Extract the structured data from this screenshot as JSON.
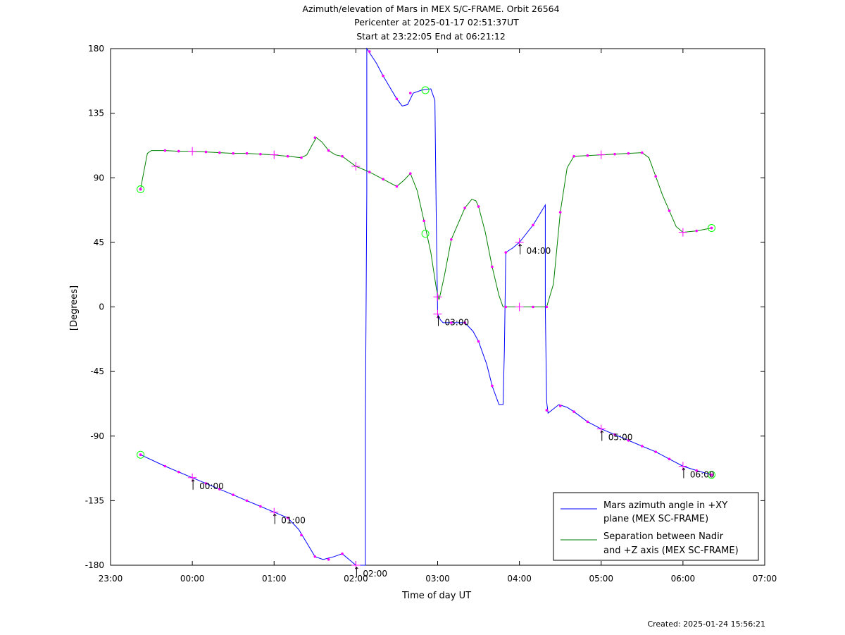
{
  "header": {
    "title_line1": "Azimuth/elevation of Mars in MEX S/C-FRAME.  Orbit 26564",
    "title_line2": "Pericenter at 2025-01-17 02:51:37UT",
    "title_line3": "Start at 23:22:05 End at 06:21:12"
  },
  "footer": {
    "created": "Created: 2025-01-24 15:56:21"
  },
  "chart_data": {
    "type": "line",
    "xlabel": "Time of day UT",
    "ylabel": "[Degrees]",
    "xlim": [
      "23:00",
      "07:00"
    ],
    "ylim": [
      -180,
      180
    ],
    "x_ticks": [
      "23:00",
      "00:00",
      "01:00",
      "02:00",
      "03:00",
      "04:00",
      "05:00",
      "06:00",
      "07:00"
    ],
    "y_ticks": [
      180,
      135,
      90,
      45,
      0,
      -45,
      -90,
      -135,
      -180
    ],
    "grid": false,
    "legend_position": "bottom-right",
    "series": [
      {
        "name": "Mars azimuth angle in +XY plane (MEX SC-FRAME)",
        "legend_line1": "Mars azimuth angle in +XY",
        "legend_line2": "plane (MEX SC-FRAME)",
        "color": "#0000ff",
        "points": [
          [
            "23:22",
            -103
          ],
          [
            "23:40",
            -111
          ],
          [
            "23:50",
            -115
          ],
          [
            "00:00",
            -119
          ],
          [
            "00:10",
            -123
          ],
          [
            "00:20",
            -127
          ],
          [
            "00:30",
            -131
          ],
          [
            "00:40",
            -135
          ],
          [
            "00:50",
            -139
          ],
          [
            "01:00",
            -143
          ],
          [
            "01:10",
            -147
          ],
          [
            "01:18",
            -155
          ],
          [
            "01:25",
            -166
          ],
          [
            "01:30",
            -174
          ],
          [
            "01:36",
            -176
          ],
          [
            "01:44",
            -174
          ],
          [
            "01:50",
            -172
          ],
          [
            "01:55",
            -176
          ],
          [
            "02:00",
            -180
          ],
          [
            "02:07",
            -180
          ],
          [
            "02:07",
            -80
          ],
          [
            "02:08",
            80
          ],
          [
            "02:08",
            180
          ],
          [
            "02:15",
            170
          ],
          [
            "02:20",
            161
          ],
          [
            "02:30",
            145
          ],
          [
            "02:34",
            140
          ],
          [
            "02:38",
            141
          ],
          [
            "02:42",
            149
          ],
          [
            "02:48",
            151
          ],
          [
            "02:55",
            152
          ],
          [
            "02:58",
            144
          ],
          [
            "02:59",
            60
          ],
          [
            "03:00",
            -5
          ],
          [
            "03:02",
            -9
          ],
          [
            "03:04",
            -11
          ],
          [
            "03:20",
            -11
          ],
          [
            "03:26",
            -17
          ],
          [
            "03:30",
            -24
          ],
          [
            "03:36",
            -40
          ],
          [
            "03:40",
            -55
          ],
          [
            "03:45",
            -68
          ],
          [
            "03:48",
            -68
          ],
          [
            "03:49",
            -30
          ],
          [
            "03:50",
            38
          ],
          [
            "03:55",
            41
          ],
          [
            "04:00",
            45
          ],
          [
            "04:10",
            57
          ],
          [
            "04:19",
            71
          ],
          [
            "04:19",
            0
          ],
          [
            "04:20",
            -66
          ],
          [
            "04:21",
            -74
          ],
          [
            "04:25",
            -71
          ],
          [
            "04:29",
            -68
          ],
          [
            "04:35",
            -70
          ],
          [
            "04:40",
            -73
          ],
          [
            "04:50",
            -80
          ],
          [
            "05:00",
            -85
          ],
          [
            "05:10",
            -89
          ],
          [
            "05:20",
            -93
          ],
          [
            "05:30",
            -97
          ],
          [
            "05:40",
            -101
          ],
          [
            "05:50",
            -106
          ],
          [
            "06:00",
            -111
          ],
          [
            "06:10",
            -114
          ],
          [
            "06:21",
            -117
          ]
        ],
        "markers": [
          [
            "23:22",
            -103
          ],
          [
            "23:40",
            -111
          ],
          [
            "23:50",
            -115
          ],
          [
            "00:10",
            -123
          ],
          [
            "00:20",
            -127
          ],
          [
            "00:30",
            -131
          ],
          [
            "00:40",
            -135
          ],
          [
            "00:50",
            -139
          ],
          [
            "01:10",
            -147
          ],
          [
            "01:20",
            -159
          ],
          [
            "01:30",
            -174
          ],
          [
            "01:40",
            -176
          ],
          [
            "01:50",
            -172
          ],
          [
            "02:10",
            178
          ],
          [
            "02:20",
            161
          ],
          [
            "02:30",
            145
          ],
          [
            "02:40",
            149
          ],
          [
            "03:10",
            -11
          ],
          [
            "03:20",
            -11
          ],
          [
            "03:30",
            -24
          ],
          [
            "03:40",
            -55
          ],
          [
            "03:50",
            38
          ],
          [
            "04:10",
            57
          ],
          [
            "04:20",
            -72
          ],
          [
            "04:30",
            -69
          ],
          [
            "04:40",
            -73
          ],
          [
            "04:50",
            -80
          ],
          [
            "05:10",
            -89
          ],
          [
            "05:20",
            -93
          ],
          [
            "05:30",
            -97
          ],
          [
            "05:40",
            -101
          ],
          [
            "05:50",
            -106
          ],
          [
            "06:10",
            -114
          ]
        ],
        "hour_markers": [
          [
            "00:00",
            -119
          ],
          [
            "01:00",
            -143
          ],
          [
            "02:00",
            -180
          ],
          [
            "03:00",
            -5
          ],
          [
            "04:00",
            45
          ],
          [
            "05:00",
            -85
          ],
          [
            "06:00",
            -111
          ]
        ],
        "start_end": [
          [
            "23:22",
            -103
          ],
          [
            "06:21",
            -117
          ]
        ]
      },
      {
        "name": "Separation between Nadir and +Z axis (MEX SC-FRAME)",
        "legend_line1": "Separation between Nadir",
        "legend_line2": "and +Z axis (MEX SC-FRAME)",
        "color": "#008000",
        "points": [
          [
            "23:22",
            82
          ],
          [
            "23:24",
            92
          ],
          [
            "23:27",
            107
          ],
          [
            "23:30",
            109
          ],
          [
            "23:40",
            109
          ],
          [
            "23:50",
            108.5
          ],
          [
            "00:00",
            108.5
          ],
          [
            "00:10",
            108
          ],
          [
            "00:20",
            107.5
          ],
          [
            "00:30",
            107
          ],
          [
            "00:40",
            107
          ],
          [
            "00:50",
            106.5
          ],
          [
            "01:00",
            106
          ],
          [
            "01:10",
            105
          ],
          [
            "01:20",
            104
          ],
          [
            "01:24",
            106
          ],
          [
            "01:28",
            113
          ],
          [
            "01:31",
            118
          ],
          [
            "01:35",
            115
          ],
          [
            "01:40",
            109
          ],
          [
            "01:45",
            106
          ],
          [
            "01:50",
            105
          ],
          [
            "02:00",
            98
          ],
          [
            "02:10",
            94
          ],
          [
            "02:20",
            89
          ],
          [
            "02:30",
            84
          ],
          [
            "02:35",
            88
          ],
          [
            "02:40",
            93
          ],
          [
            "02:45",
            81
          ],
          [
            "02:50",
            60
          ],
          [
            "02:55",
            38
          ],
          [
            "02:59",
            13
          ],
          [
            "03:01",
            5
          ],
          [
            "03:02",
            9
          ],
          [
            "03:05",
            22
          ],
          [
            "03:10",
            47
          ],
          [
            "03:20",
            69
          ],
          [
            "03:25",
            75
          ],
          [
            "03:28",
            74
          ],
          [
            "03:30",
            70
          ],
          [
            "03:35",
            52
          ],
          [
            "03:40",
            28
          ],
          [
            "03:45",
            8
          ],
          [
            "03:48",
            0
          ],
          [
            "04:00",
            0
          ],
          [
            "04:10",
            0
          ],
          [
            "04:20",
            0
          ],
          [
            "04:25",
            16
          ],
          [
            "04:30",
            66
          ],
          [
            "04:35",
            97
          ],
          [
            "04:40",
            105
          ],
          [
            "04:50",
            105.5
          ],
          [
            "05:00",
            106
          ],
          [
            "05:10",
            106.5
          ],
          [
            "05:20",
            107
          ],
          [
            "05:30",
            107.5
          ],
          [
            "05:35",
            104
          ],
          [
            "05:40",
            91
          ],
          [
            "05:45",
            78
          ],
          [
            "05:50",
            67
          ],
          [
            "05:55",
            56
          ],
          [
            "06:00",
            52
          ],
          [
            "06:10",
            53
          ],
          [
            "06:21",
            55
          ]
        ],
        "markers": [
          [
            "23:22",
            82
          ],
          [
            "23:40",
            109
          ],
          [
            "23:50",
            108.5
          ],
          [
            "00:10",
            108
          ],
          [
            "00:20",
            107.5
          ],
          [
            "00:30",
            107
          ],
          [
            "00:40",
            107
          ],
          [
            "00:50",
            106.5
          ],
          [
            "01:10",
            105
          ],
          [
            "01:20",
            104
          ],
          [
            "01:30",
            118
          ],
          [
            "01:40",
            109
          ],
          [
            "01:50",
            105
          ],
          [
            "02:10",
            94
          ],
          [
            "02:20",
            89
          ],
          [
            "02:30",
            84
          ],
          [
            "02:40",
            93
          ],
          [
            "02:50",
            60
          ],
          [
            "03:10",
            47
          ],
          [
            "03:20",
            69
          ],
          [
            "03:30",
            70
          ],
          [
            "03:40",
            28
          ],
          [
            "03:50",
            0
          ],
          [
            "04:10",
            0
          ],
          [
            "04:20",
            0
          ],
          [
            "04:30",
            66
          ],
          [
            "04:40",
            105
          ],
          [
            "04:50",
            105.5
          ],
          [
            "05:10",
            106.5
          ],
          [
            "05:20",
            107
          ],
          [
            "05:30",
            107.5
          ],
          [
            "05:40",
            91
          ],
          [
            "05:50",
            67
          ],
          [
            "06:10",
            53
          ],
          [
            "06:21",
            55
          ]
        ],
        "hour_markers": [
          [
            "00:00",
            108.5
          ],
          [
            "01:00",
            106
          ],
          [
            "02:00",
            98
          ],
          [
            "03:00",
            7
          ],
          [
            "04:00",
            0
          ],
          [
            "05:00",
            106
          ],
          [
            "06:00",
            52
          ]
        ],
        "start_end": [
          [
            "23:22",
            82
          ],
          [
            "06:21",
            55
          ]
        ],
        "pericenter": [
          "02:51",
          51
        ]
      }
    ],
    "azimuth_pericenter": [
      "02:51",
      151
    ],
    "annotations": [
      {
        "text": "00:00",
        "at": [
          "00:00",
          -119
        ]
      },
      {
        "text": "01:00",
        "at": [
          "01:00",
          -143
        ]
      },
      {
        "text": "02:00",
        "at": [
          "02:00",
          -180
        ]
      },
      {
        "text": "03:00",
        "at": [
          "03:00",
          -5
        ]
      },
      {
        "text": "04:00",
        "at": [
          "04:00",
          45
        ]
      },
      {
        "text": "05:00",
        "at": [
          "05:00",
          -85
        ]
      },
      {
        "text": "06:00",
        "at": [
          "06:00",
          -111
        ]
      }
    ],
    "colors": {
      "marker": "#ff00ff",
      "circle": "#00ff00"
    }
  }
}
